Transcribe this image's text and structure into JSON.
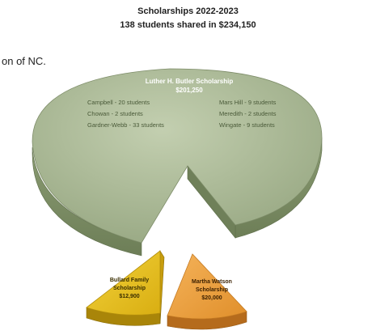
{
  "page": {
    "title_line1": "Scholarships 2022-2023",
    "title_line2": "138 students shared in $234,150",
    "side_text": "on of NC."
  },
  "colors": {
    "butler_top": "#a6b491",
    "butler_side": "#7b8c64",
    "bullard_top": "#e8c21a",
    "bullard_side": "#b48f0c",
    "watson_top": "#f0a242",
    "watson_side": "#c47a23"
  },
  "chart_data": {
    "type": "pie",
    "title": "Scholarships 2022-2023",
    "subtitle": "138 students shared in $234,150",
    "slices": [
      {
        "key": "butler",
        "label": "Luther H. Butler Scholarship",
        "value_label": "$201,250",
        "value": 201250,
        "details": [
          "Campbell - 20 students",
          "Chowan - 2 students",
          "Gardner-Webb - 33 students",
          "Mars Hill - 9 students",
          "Meredith - 2 students",
          "Wingate - 9 students"
        ]
      },
      {
        "key": "bullard",
        "label_lines": [
          "Bullard Family",
          "Scholarship"
        ],
        "value_label": "$12,900",
        "value": 12900
      },
      {
        "key": "watson",
        "label_lines": [
          "Martha Watson",
          "Scholarship"
        ],
        "value_label": "$20,000",
        "value": 20000
      }
    ]
  }
}
